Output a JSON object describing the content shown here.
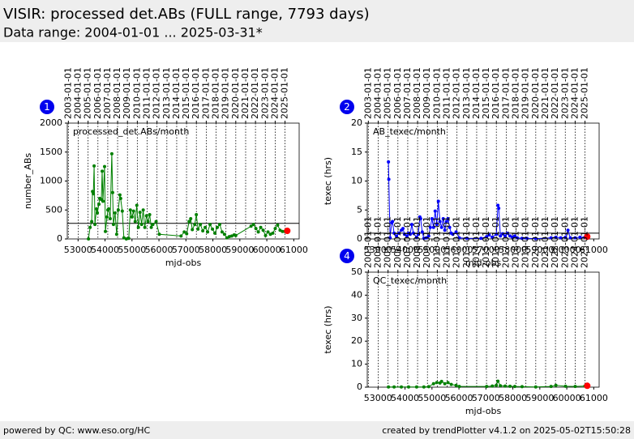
{
  "header": {
    "title": "VISIR: processed det.ABs (FULL range, 7793 days)",
    "subtitle": "Data range: 2004-01-01 ... 2025-03-31*"
  },
  "footer": {
    "left": "powered by QC: www.eso.org/HC",
    "right": "created by trendPlotter v4.1.2 on 2025-05-02T15:50:28"
  },
  "chart_data": [
    {
      "type": "line",
      "panel_label": "1",
      "plot_label": "processed_det.ABs/month",
      "xlabel": "mjd-obs",
      "ylabel": "number_ABs",
      "xlim": [
        52600,
        61200
      ],
      "ylim": [
        0,
        2000
      ],
      "xticks": [
        53000,
        54000,
        55000,
        56000,
        57000,
        58000,
        59000,
        60000,
        61000
      ],
      "yticks": [
        0,
        500,
        1000,
        1500,
        2000
      ],
      "top_xticks": [
        {
          "value": 52640,
          "label": "2003-01-01"
        },
        {
          "value": 53005,
          "label": "2004-01-01"
        },
        {
          "value": 53371,
          "label": "2005-01-01"
        },
        {
          "value": 53736,
          "label": "2006-01-01"
        },
        {
          "value": 54101,
          "label": "2007-01-01"
        },
        {
          "value": 54466,
          "label": "2008-01-01"
        },
        {
          "value": 54832,
          "label": "2009-01-01"
        },
        {
          "value": 55197,
          "label": "2010-01-01"
        },
        {
          "value": 55562,
          "label": "2011-01-01"
        },
        {
          "value": 55927,
          "label": "2012-01-01"
        },
        {
          "value": 56293,
          "label": "2013-01-01"
        },
        {
          "value": 56658,
          "label": "2014-01-01"
        },
        {
          "value": 57023,
          "label": "2015-01-01"
        },
        {
          "value": 57388,
          "label": "2016-01-01"
        },
        {
          "value": 57754,
          "label": "2017-01-01"
        },
        {
          "value": 58119,
          "label": "2018-01-01"
        },
        {
          "value": 58484,
          "label": "2019-01-01"
        },
        {
          "value": 58849,
          "label": "2020-01-01"
        },
        {
          "value": 59215,
          "label": "2021-01-01"
        },
        {
          "value": 59580,
          "label": "2022-01-01"
        },
        {
          "value": 59945,
          "label": "2023-01-01"
        },
        {
          "value": 60310,
          "label": "2024-01-01"
        },
        {
          "value": 60676,
          "label": "2025-01-01"
        }
      ],
      "grid": true,
      "ref_line": 270,
      "series": [
        {
          "color": "#008000",
          "x": [
            53386,
            53446,
            53506,
            53536,
            53565,
            53595,
            53625,
            53685,
            53715,
            53774,
            53804,
            53864,
            53894,
            53924,
            53983,
            54013,
            54073,
            54103,
            54133,
            54192,
            54252,
            54282,
            54312,
            54372,
            54431,
            54491,
            54551,
            54580,
            54640,
            54700,
            54790,
            54879,
            54939,
            54999,
            55058,
            55118,
            55178,
            55237,
            55297,
            55357,
            55416,
            55476,
            55536,
            55595,
            55655,
            55715,
            55774,
            55894,
            56013,
            56819,
            56938,
            57028,
            57118,
            57178,
            57237,
            57327,
            57386,
            57446,
            57536,
            57625,
            57715,
            57804,
            57894,
            57984,
            58073,
            58163,
            58252,
            58342,
            58431,
            58521,
            58610,
            58700,
            58789,
            58849,
            59416,
            59506,
            59595,
            59685,
            59774,
            59864,
            59953,
            60043,
            60133,
            60222,
            60312,
            60401,
            60491,
            60580,
            60670
          ],
          "values": [
            0,
            200,
            300,
            820,
            780,
            1260,
            250,
            520,
            450,
            600,
            700,
            680,
            1170,
            650,
            1250,
            130,
            380,
            500,
            520,
            350,
            1470,
            800,
            250,
            450,
            80,
            500,
            760,
            700,
            480,
            20,
            0,
            10,
            500,
            380,
            480,
            300,
            580,
            200,
            460,
            250,
            500,
            200,
            400,
            300,
            420,
            200,
            250,
            300,
            80,
            50,
            120,
            90,
            300,
            350,
            160,
            250,
            420,
            170,
            250,
            140,
            200,
            120,
            250,
            170,
            100,
            200,
            250,
            120,
            80,
            20,
            40,
            50,
            70,
            60,
            220,
            250,
            180,
            120,
            200,
            150,
            60,
            120,
            80,
            100,
            180,
            240,
            150,
            130,
            130
          ]
        },
        {
          "color": "#ff0000",
          "x": [
            60759
          ],
          "values": [
            140
          ]
        }
      ]
    },
    {
      "type": "line",
      "panel_label": "2",
      "plot_label": "AB_texec/month",
      "xlabel": "mjd-obs",
      "ylabel": "texec (hrs)",
      "xlim": [
        52600,
        61200
      ],
      "ylim": [
        0,
        20
      ],
      "xticks": [
        53000,
        54000,
        55000,
        56000,
        57000,
        58000,
        59000,
        60000,
        61000
      ],
      "yticks": [
        0,
        5,
        10,
        15,
        20
      ],
      "top_xticks": [
        {
          "value": 52640,
          "label": "2003-01-01"
        },
        {
          "value": 53005,
          "label": "2004-01-01"
        },
        {
          "value": 53371,
          "label": "2005-01-01"
        },
        {
          "value": 53736,
          "label": "2006-01-01"
        },
        {
          "value": 54101,
          "label": "2007-01-01"
        },
        {
          "value": 54466,
          "label": "2008-01-01"
        },
        {
          "value": 54832,
          "label": "2009-01-01"
        },
        {
          "value": 55197,
          "label": "2010-01-01"
        },
        {
          "value": 55562,
          "label": "2011-01-01"
        },
        {
          "value": 55927,
          "label": "2012-01-01"
        },
        {
          "value": 56293,
          "label": "2013-01-01"
        },
        {
          "value": 56658,
          "label": "2014-01-01"
        },
        {
          "value": 57023,
          "label": "2015-01-01"
        },
        {
          "value": 57388,
          "label": "2016-01-01"
        },
        {
          "value": 57754,
          "label": "2017-01-01"
        },
        {
          "value": 58119,
          "label": "2018-01-01"
        },
        {
          "value": 58484,
          "label": "2019-01-01"
        },
        {
          "value": 58849,
          "label": "2020-01-01"
        },
        {
          "value": 59215,
          "label": "2021-01-01"
        },
        {
          "value": 59580,
          "label": "2022-01-01"
        },
        {
          "value": 59945,
          "label": "2023-01-01"
        },
        {
          "value": 60310,
          "label": "2024-01-01"
        },
        {
          "value": 60676,
          "label": "2025-01-01"
        }
      ],
      "grid": true,
      "ref_line": 1,
      "series": [
        {
          "color": "#0000ff",
          "x": [
            53386,
            53400,
            53446,
            53506,
            53536,
            53595,
            53685,
            53774,
            53864,
            53924,
            53983,
            54073,
            54133,
            54192,
            54252,
            54312,
            54431,
            54491,
            54551,
            54580,
            54640,
            54700,
            54790,
            54879,
            54939,
            54999,
            55058,
            55118,
            55178,
            55237,
            55297,
            55357,
            55416,
            55476,
            55536,
            55595,
            55655,
            55715,
            55774,
            55894,
            56013,
            56300,
            56819,
            57028,
            57118,
            57237,
            57386,
            57446,
            57476,
            57536,
            57625,
            57715,
            57804,
            57894,
            57984,
            58073,
            58163,
            58342,
            58521,
            58849,
            59416,
            59595,
            59774,
            59953,
            60043,
            60133,
            60312,
            60491,
            60670
          ],
          "values": [
            13.3,
            10.3,
            0.2,
            2.8,
            3,
            1,
            0.5,
            1,
            1.5,
            1.8,
            0.8,
            0.5,
            1,
            0.8,
            2.5,
            1,
            0.3,
            0.8,
            3.8,
            3.5,
            1.2,
            0.1,
            0.2,
            0.5,
            2,
            3.5,
            2,
            4.8,
            2.5,
            6.5,
            3,
            2,
            3.5,
            1.5,
            3,
            3.5,
            2,
            1,
            0.8,
            1.2,
            0.2,
            0.1,
            0.1,
            0.4,
            0.7,
            0.3,
            0.8,
            5.8,
            5.3,
            0.5,
            0.9,
            0.5,
            1,
            0.5,
            0.3,
            0.5,
            0.2,
            0.1,
            0.1,
            0.05,
            0.2,
            0.3,
            0.2,
            0.3,
            1.5,
            0.2,
            0.2,
            0.3,
            0.3
          ]
        },
        {
          "color": "#ff0000",
          "x": [
            60759
          ],
          "values": [
            0.4
          ]
        }
      ]
    },
    {
      "type": "line",
      "panel_label": "4",
      "plot_label": "QC_texec/month",
      "xlabel": "mjd-obs",
      "ylabel": "texec (hrs)",
      "xlim": [
        52600,
        61200
      ],
      "ylim": [
        0,
        50
      ],
      "xticks": [
        53000,
        54000,
        55000,
        56000,
        57000,
        58000,
        59000,
        60000,
        61000
      ],
      "yticks": [
        0,
        10,
        20,
        30,
        40,
        50
      ],
      "top_xticks": [
        {
          "value": 52640,
          "label": "2003-01-01"
        },
        {
          "value": 53005,
          "label": "2004-01-01"
        },
        {
          "value": 53371,
          "label": "2005-01-01"
        },
        {
          "value": 53736,
          "label": "2006-01-01"
        },
        {
          "value": 54101,
          "label": "2007-01-01"
        },
        {
          "value": 54466,
          "label": "2008-01-01"
        },
        {
          "value": 54832,
          "label": "2009-01-01"
        },
        {
          "value": 55197,
          "label": "2010-01-01"
        },
        {
          "value": 55562,
          "label": "2011-01-01"
        },
        {
          "value": 55927,
          "label": "2012-01-01"
        },
        {
          "value": 56293,
          "label": "2013-01-01"
        },
        {
          "value": 56658,
          "label": "2014-01-01"
        },
        {
          "value": 57023,
          "label": "2015-01-01"
        },
        {
          "value": 57388,
          "label": "2016-01-01"
        },
        {
          "value": 57754,
          "label": "2017-01-01"
        },
        {
          "value": 58119,
          "label": "2018-01-01"
        },
        {
          "value": 58484,
          "label": "2019-01-01"
        },
        {
          "value": 58849,
          "label": "2020-01-01"
        },
        {
          "value": 59215,
          "label": "2021-01-01"
        },
        {
          "value": 59580,
          "label": "2022-01-01"
        },
        {
          "value": 59945,
          "label": "2023-01-01"
        },
        {
          "value": 60310,
          "label": "2024-01-01"
        },
        {
          "value": 60676,
          "label": "2025-01-01"
        }
      ],
      "grid": true,
      "series": [
        {
          "color": "#008000",
          "x": [
            53386,
            53595,
            53864,
            54133,
            54431,
            54700,
            54879,
            55058,
            55178,
            55297,
            55357,
            55476,
            55595,
            55715,
            55894,
            56013,
            57028,
            57237,
            57386,
            57446,
            57536,
            57715,
            57894,
            58073,
            58342,
            58849,
            59416,
            59595,
            59953,
            60312,
            60670
          ],
          "values": [
            0.1,
            0.1,
            0.1,
            0.1,
            0.1,
            0.1,
            0.2,
            1.5,
            2,
            1.8,
            2.5,
            1.5,
            2,
            1.2,
            0.8,
            0.3,
            0.3,
            0.5,
            0.8,
            2.6,
            0.6,
            0.5,
            0.4,
            0.3,
            0.2,
            0.1,
            0.3,
            0.8,
            0.4,
            0.3,
            0.5
          ]
        },
        {
          "color": "#ff0000",
          "x": [
            60759
          ],
          "values": [
            0.6
          ]
        }
      ]
    }
  ]
}
